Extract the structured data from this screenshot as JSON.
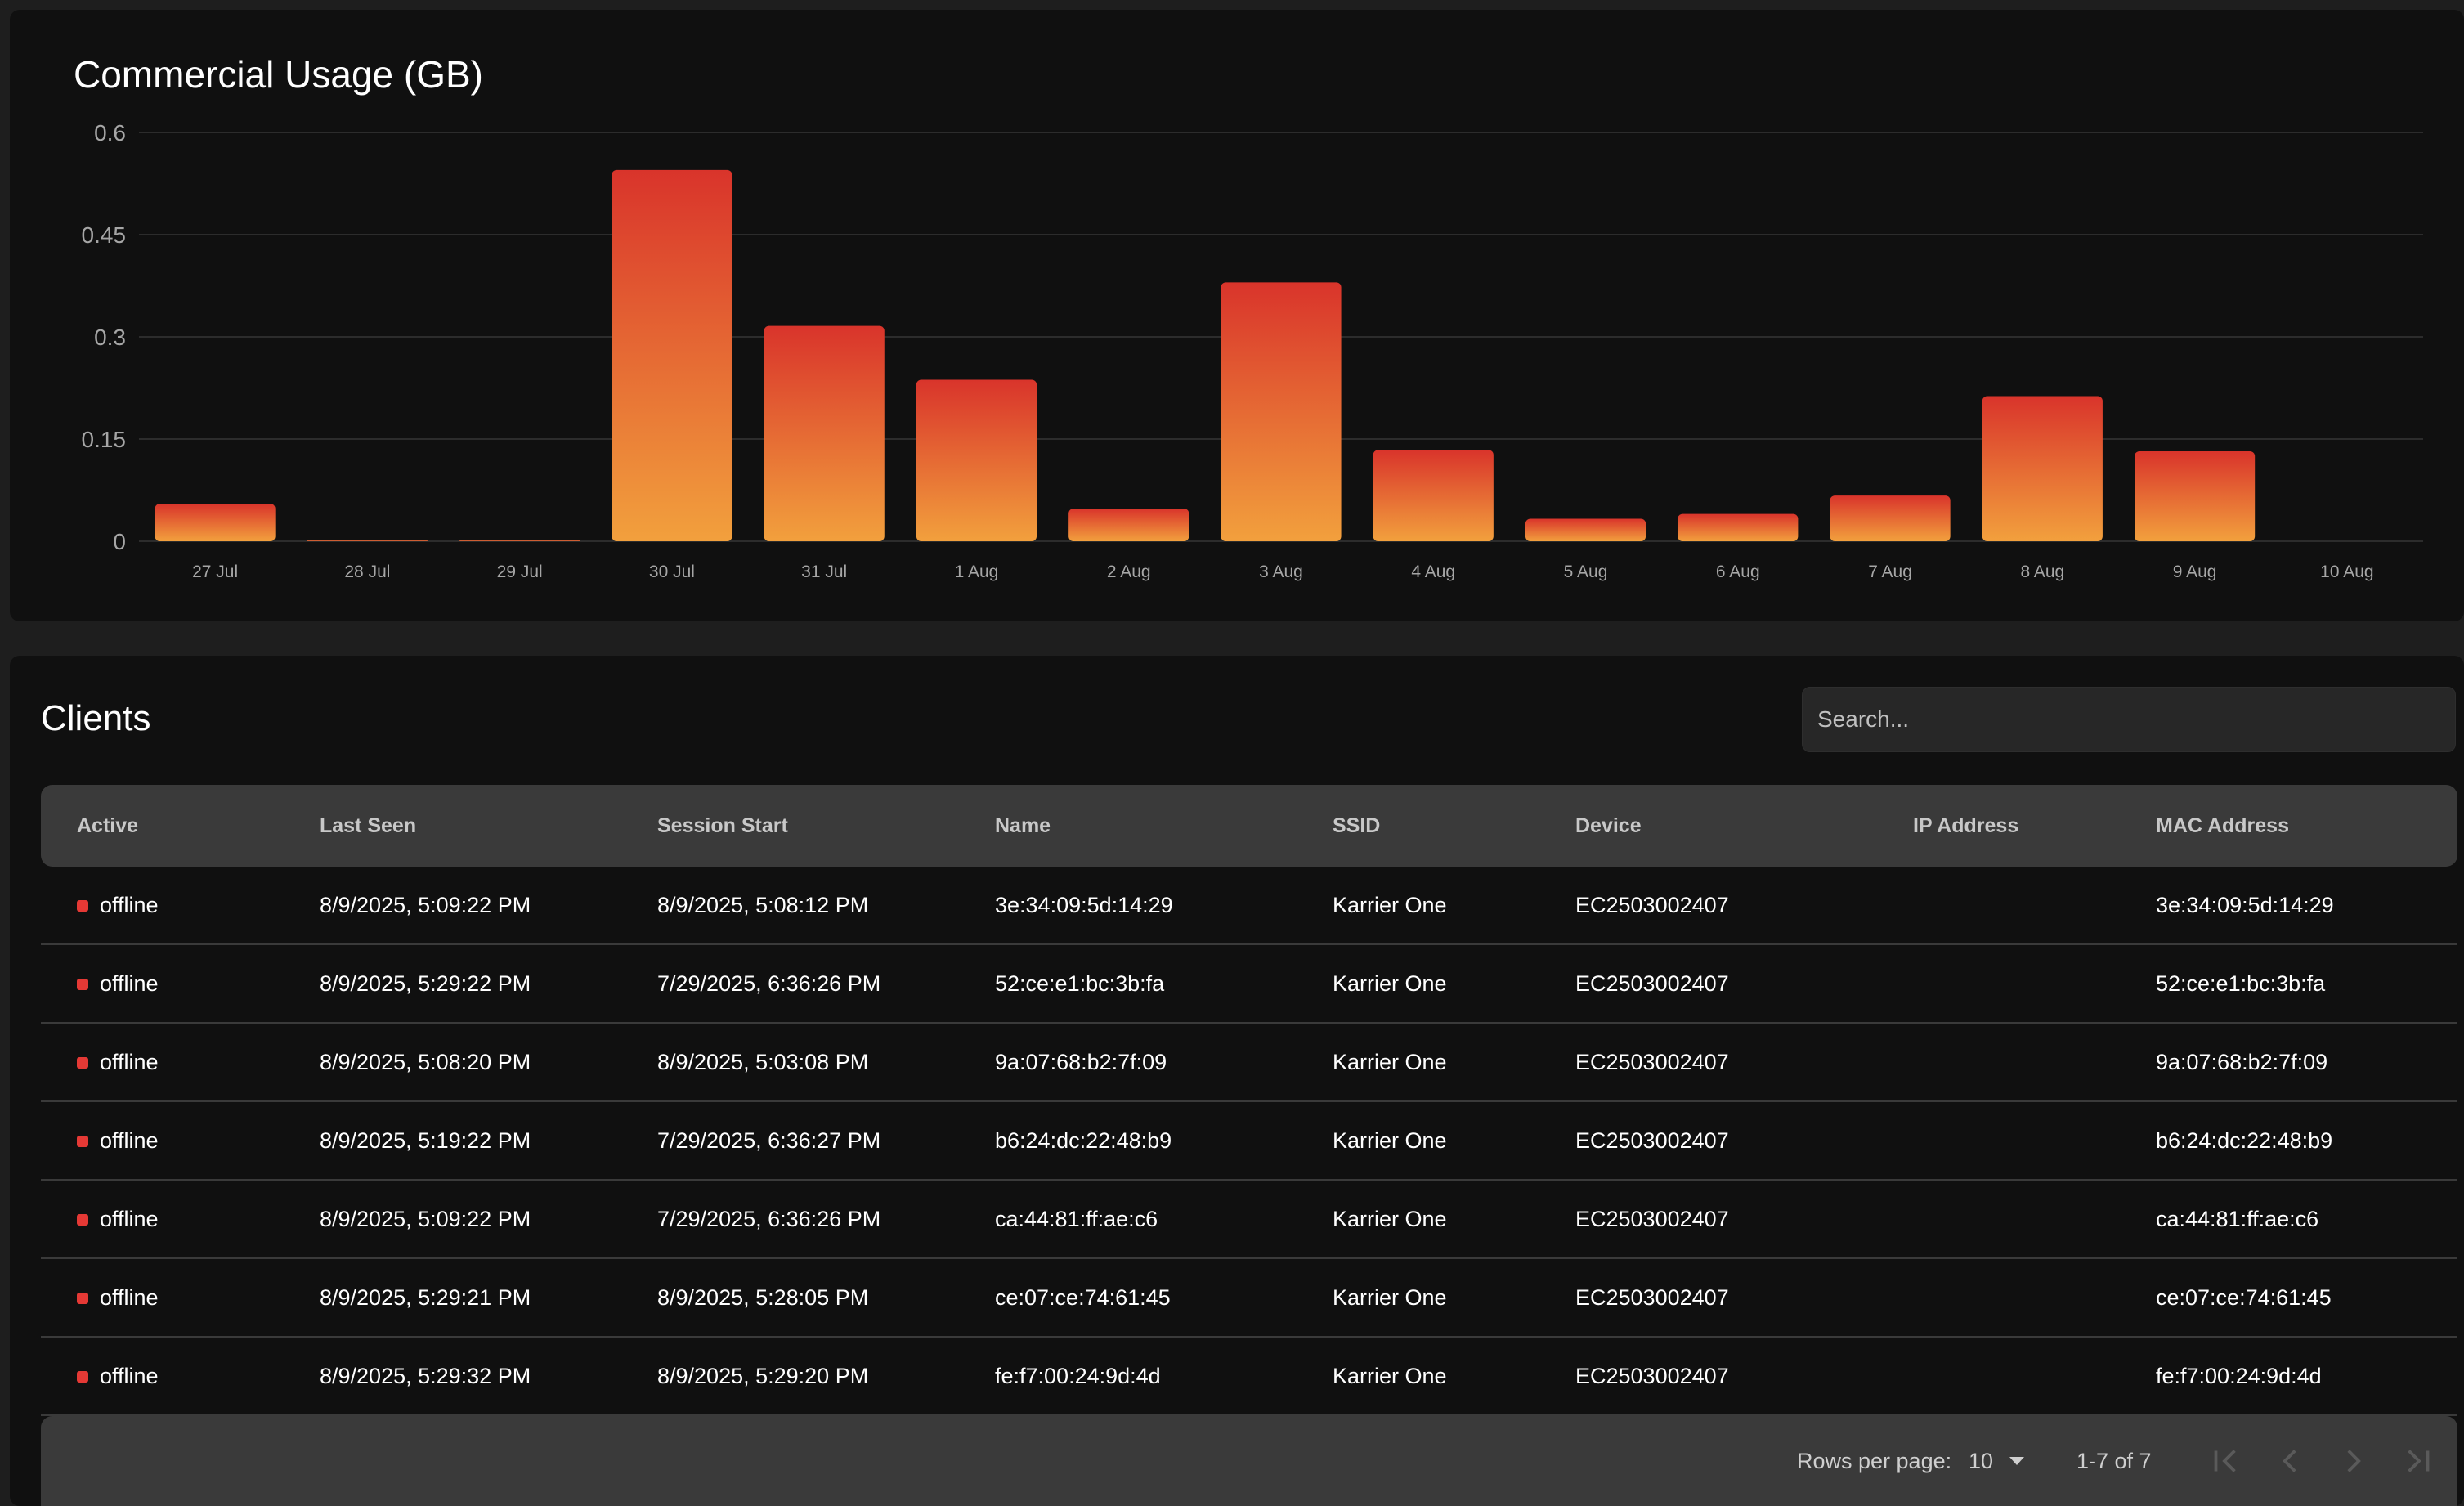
{
  "chart_data": {
    "type": "bar",
    "title": "Commercial Usage (GB)",
    "categories": [
      "27 Jul",
      "28 Jul",
      "29 Jul",
      "30 Jul",
      "31 Jul",
      "1 Aug",
      "2 Aug",
      "3 Aug",
      "4 Aug",
      "5 Aug",
      "6 Aug",
      "7 Aug",
      "8 Aug",
      "9 Aug",
      "10 Aug"
    ],
    "values": [
      0.055,
      0.001,
      0.001,
      0.545,
      0.316,
      0.237,
      0.048,
      0.38,
      0.134,
      0.033,
      0.04,
      0.067,
      0.213,
      0.132,
      0
    ],
    "yticks": [
      "0",
      "0.15",
      "0.3",
      "0.45",
      "0.6"
    ],
    "ylim": [
      0,
      0.6
    ],
    "grid": true,
    "colors": {
      "bar_top": "#d9342b",
      "bar_bottom": "#f2a03d",
      "grid": "#2c2c2c"
    }
  },
  "clients": {
    "title": "Clients",
    "search_placeholder": "Search...",
    "columns": [
      "Active",
      "Last Seen",
      "Session Start",
      "Name",
      "SSID",
      "Device",
      "IP Address",
      "MAC Address"
    ],
    "rows": [
      {
        "status": "offline",
        "last_seen": "8/9/2025, 5:09:22 PM",
        "session_start": "8/9/2025, 5:08:12 PM",
        "name": "3e:34:09:5d:14:29",
        "ssid": "Karrier One",
        "device": "EC2503002407",
        "ip": "",
        "mac": "3e:34:09:5d:14:29"
      },
      {
        "status": "offline",
        "last_seen": "8/9/2025, 5:29:22 PM",
        "session_start": "7/29/2025, 6:36:26 PM",
        "name": "52:ce:e1:bc:3b:fa",
        "ssid": "Karrier One",
        "device": "EC2503002407",
        "ip": "",
        "mac": "52:ce:e1:bc:3b:fa"
      },
      {
        "status": "offline",
        "last_seen": "8/9/2025, 5:08:20 PM",
        "session_start": "8/9/2025, 5:03:08 PM",
        "name": "9a:07:68:b2:7f:09",
        "ssid": "Karrier One",
        "device": "EC2503002407",
        "ip": "",
        "mac": "9a:07:68:b2:7f:09"
      },
      {
        "status": "offline",
        "last_seen": "8/9/2025, 5:19:22 PM",
        "session_start": "7/29/2025, 6:36:27 PM",
        "name": "b6:24:dc:22:48:b9",
        "ssid": "Karrier One",
        "device": "EC2503002407",
        "ip": "",
        "mac": "b6:24:dc:22:48:b9"
      },
      {
        "status": "offline",
        "last_seen": "8/9/2025, 5:09:22 PM",
        "session_start": "7/29/2025, 6:36:26 PM",
        "name": "ca:44:81:ff:ae:c6",
        "ssid": "Karrier One",
        "device": "EC2503002407",
        "ip": "",
        "mac": "ca:44:81:ff:ae:c6"
      },
      {
        "status": "offline",
        "last_seen": "8/9/2025, 5:29:21 PM",
        "session_start": "8/9/2025, 5:28:05 PM",
        "name": "ce:07:ce:74:61:45",
        "ssid": "Karrier One",
        "device": "EC2503002407",
        "ip": "",
        "mac": "ce:07:ce:74:61:45"
      },
      {
        "status": "offline",
        "last_seen": "8/9/2025, 5:29:32 PM",
        "session_start": "8/9/2025, 5:29:20 PM",
        "name": "fe:f7:00:24:9d:4d",
        "ssid": "Karrier One",
        "device": "EC2503002407",
        "ip": "",
        "mac": "fe:f7:00:24:9d:4d"
      }
    ],
    "status_color": "#e53935"
  },
  "pagination": {
    "rows_per_page_label": "Rows per page:",
    "rows_per_page_value": "10",
    "range_text": "1-7 of 7",
    "icons": [
      "first-page-icon",
      "previous-page-icon",
      "next-page-icon",
      "last-page-icon"
    ]
  }
}
